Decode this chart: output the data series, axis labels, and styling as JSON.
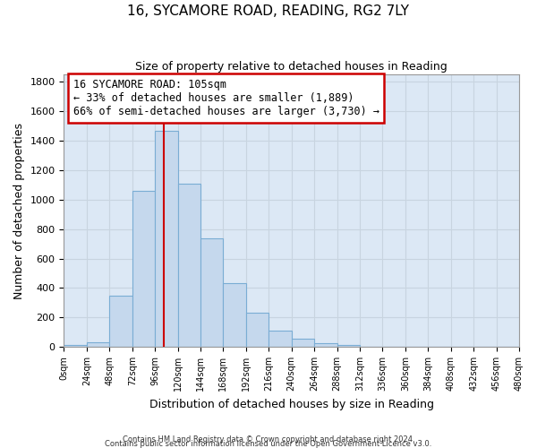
{
  "title_line1": "16, SYCAMORE ROAD, READING, RG2 7LY",
  "title_line2": "Size of property relative to detached houses in Reading",
  "xlabel": "Distribution of detached houses by size in Reading",
  "ylabel": "Number of detached properties",
  "bar_edges": [
    0,
    24,
    48,
    72,
    96,
    120,
    144,
    168,
    192,
    216,
    240,
    264,
    288,
    312,
    336,
    360,
    384,
    408,
    432,
    456,
    480
  ],
  "bar_heights": [
    15,
    30,
    350,
    1060,
    1470,
    1110,
    740,
    435,
    230,
    110,
    55,
    25,
    15,
    0,
    0,
    0,
    0,
    0,
    0,
    0
  ],
  "bar_color": "#c5d8ed",
  "bar_edgecolor": "#7aadd4",
  "property_line_x": 105,
  "annotation_title": "16 SYCAMORE ROAD: 105sqm",
  "annotation_line1": "← 33% of detached houses are smaller (1,889)",
  "annotation_line2": "66% of semi-detached houses are larger (3,730) →",
  "annotation_box_color": "#ffffff",
  "annotation_box_edgecolor": "#cc0000",
  "red_line_color": "#cc0000",
  "ylim": [
    0,
    1850
  ],
  "xlim": [
    0,
    480
  ],
  "grid_color": "#c8d4e0",
  "footer_line1": "Contains HM Land Registry data © Crown copyright and database right 2024.",
  "footer_line2": "Contains public sector information licensed under the Open Government Licence v3.0.",
  "tick_labels": [
    "0sqm",
    "24sqm",
    "48sqm",
    "72sqm",
    "96sqm",
    "120sqm",
    "144sqm",
    "168sqm",
    "192sqm",
    "216sqm",
    "240sqm",
    "264sqm",
    "288sqm",
    "312sqm",
    "336sqm",
    "360sqm",
    "384sqm",
    "408sqm",
    "432sqm",
    "456sqm",
    "480sqm"
  ],
  "yticks": [
    0,
    200,
    400,
    600,
    800,
    1000,
    1200,
    1400,
    1600,
    1800
  ],
  "background_color": "#dce8f5"
}
